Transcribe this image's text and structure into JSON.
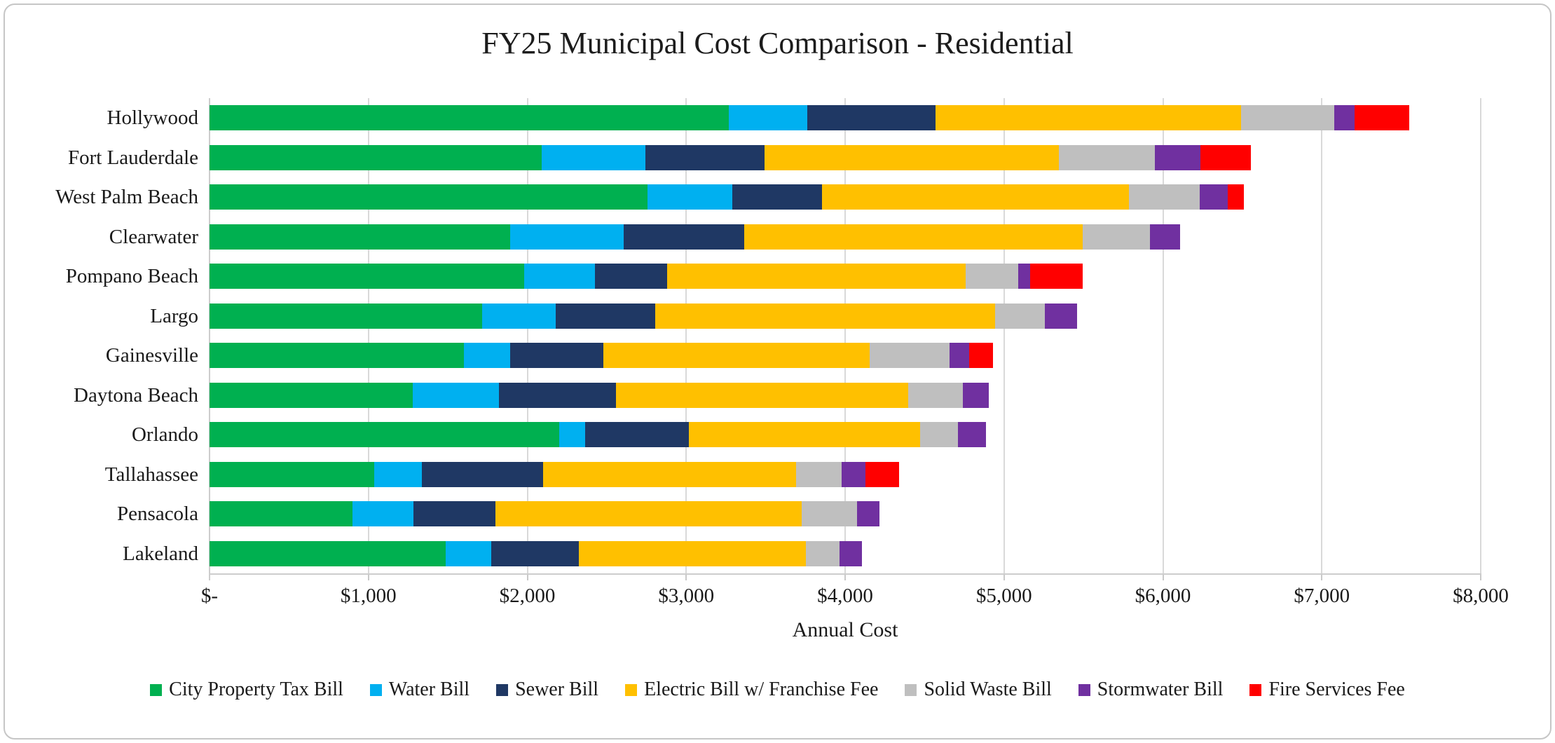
{
  "title": "FY25 Municipal Cost Comparison - Residential",
  "chart_data": {
    "type": "bar",
    "orientation": "horizontal",
    "stacked": true,
    "title": "FY25 Municipal Cost Comparison - Residential",
    "xlabel": "Annual Cost",
    "ylabel": "",
    "xlim": [
      0,
      8000
    ],
    "grid": true,
    "legend_position": "bottom",
    "x_ticks": [
      {
        "value": 0,
        "label": "$-"
      },
      {
        "value": 1000,
        "label": "$1,000"
      },
      {
        "value": 2000,
        "label": "$2,000"
      },
      {
        "value": 3000,
        "label": "$3,000"
      },
      {
        "value": 4000,
        "label": "$4,000"
      },
      {
        "value": 5000,
        "label": "$5,000"
      },
      {
        "value": 6000,
        "label": "$6,000"
      },
      {
        "value": 7000,
        "label": "$7,000"
      },
      {
        "value": 8000,
        "label": "$8,000"
      }
    ],
    "categories": [
      "Hollywood",
      "Fort Lauderdale",
      "West Palm Beach",
      "Clearwater",
      "Pompano Beach",
      "Largo",
      "Gainesville",
      "Daytona Beach",
      "Orlando",
      "Tallahassee",
      "Pensacola",
      "Lakeland"
    ],
    "series": [
      {
        "name": "City Property Tax Bill",
        "color": "#00B050",
        "values": [
          3270,
          2090,
          2755,
          1890,
          1980,
          1715,
          1600,
          1280,
          2200,
          1035,
          900,
          1485
        ]
      },
      {
        "name": "Water Bill",
        "color": "#00B0F0",
        "values": [
          490,
          655,
          535,
          715,
          445,
          465,
          290,
          540,
          165,
          300,
          385,
          290
        ]
      },
      {
        "name": "Sewer Bill",
        "color": "#1F3864",
        "values": [
          810,
          750,
          565,
          760,
          455,
          625,
          590,
          740,
          650,
          765,
          515,
          550
        ]
      },
      {
        "name": "Electric Bill w/ Franchise Fee",
        "color": "#FFC000",
        "values": [
          1920,
          1850,
          1930,
          2130,
          1880,
          2140,
          1675,
          1835,
          1455,
          1590,
          1925,
          1430
        ]
      },
      {
        "name": "Solid Waste Bill",
        "color": "#BFBFBF",
        "values": [
          590,
          605,
          445,
          425,
          330,
          310,
          500,
          345,
          240,
          290,
          350,
          210
        ]
      },
      {
        "name": "Stormwater Bill",
        "color": "#7030A0",
        "values": [
          125,
          285,
          180,
          190,
          75,
          205,
          125,
          165,
          175,
          150,
          140,
          140
        ]
      },
      {
        "name": "Fire Services Fee",
        "color": "#FF0000",
        "values": [
          345,
          320,
          100,
          0,
          330,
          0,
          150,
          0,
          0,
          210,
          0,
          0
        ]
      }
    ]
  }
}
